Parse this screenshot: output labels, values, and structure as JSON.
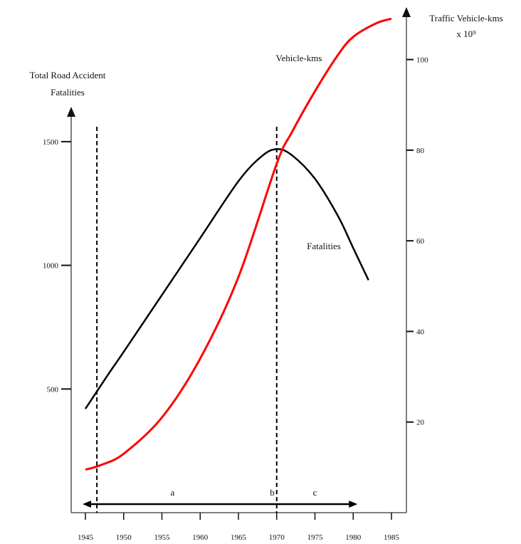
{
  "chart_data": {
    "type": "line",
    "left_axis_label": [
      "Total Road Accident",
      "Fatalities"
    ],
    "right_axis_label": [
      "Traffic Vehicle-kms",
      "x 10⁹"
    ],
    "x_ticks": [
      "1945",
      "1950",
      "1955",
      "1960",
      "1965",
      "1970",
      "1975",
      "1980",
      "1985"
    ],
    "xlim": [
      1945,
      1985
    ],
    "left_ticks": [
      "1500",
      "1000",
      "500"
    ],
    "left_tick_values": [
      1500,
      1000,
      500
    ],
    "left_ylim": [
      0,
      1900
    ],
    "right_ticks": [
      "100",
      "80",
      "60",
      "40",
      "20"
    ],
    "right_tick_values": [
      100,
      80,
      60,
      40,
      20
    ],
    "right_ylim": [
      0,
      110
    ],
    "series": [
      {
        "name": "Fatalities",
        "axis": "left",
        "color": "#000000",
        "x": [
          1945,
          1948,
          1950,
          1955,
          1960,
          1965,
          1968,
          1970,
          1972,
          1975,
          1978,
          1980,
          1982
        ],
        "y": [
          420,
          560,
          650,
          880,
          1110,
          1340,
          1440,
          1470,
          1445,
          1350,
          1200,
          1070,
          940
        ]
      },
      {
        "name": "Vehicle-kms",
        "axis": "right",
        "color": "#ff0000",
        "x": [
          1945,
          1947,
          1950,
          1955,
          1960,
          1965,
          1970,
          1972,
          1975,
          1978,
          1980,
          1983,
          1985
        ],
        "y": [
          9.5,
          10.5,
          13,
          21,
          34,
          52,
          77,
          84,
          93,
          101,
          105,
          108,
          109
        ]
      }
    ],
    "vertical_markers": [
      1946.5,
      1970
    ],
    "periods": [
      "a",
      "b",
      "c"
    ],
    "annotations": {
      "fatalities": "Fatalities",
      "vehicle_kms": "Vehicle-kms"
    }
  }
}
